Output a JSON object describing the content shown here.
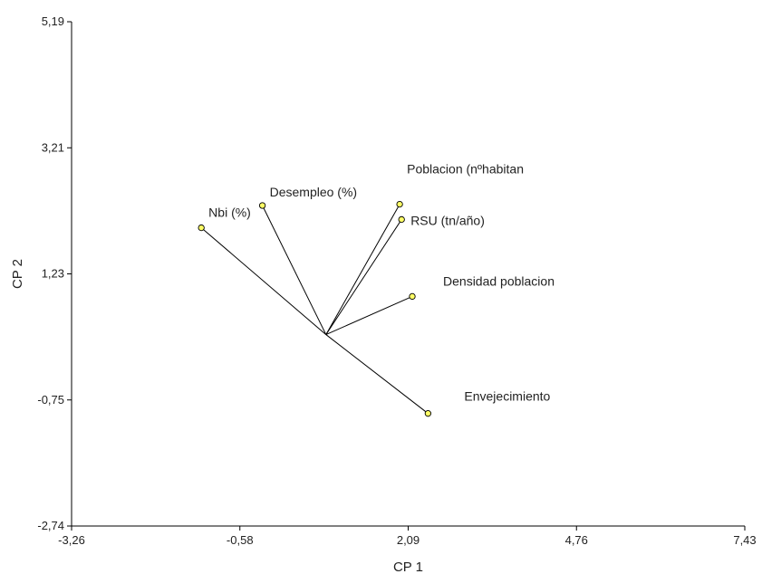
{
  "chart_data": {
    "type": "scatter",
    "subtype": "biplot",
    "title": "",
    "xlabel": "CP 1",
    "ylabel": "CP 2",
    "xlim": [
      -3.26,
      7.43
    ],
    "ylim": [
      -2.74,
      5.19
    ],
    "x_ticks": [
      "-3,26",
      "-0,58",
      "2,09",
      "4,76",
      "7,43"
    ],
    "y_ticks": [
      "-2,74",
      "-0,75",
      "1,23",
      "3,21",
      "5,19"
    ],
    "origin": [
      0.78,
      0.27
    ],
    "grid": false,
    "legend": "none",
    "marker_color": "#ffff66",
    "line_color": "#000000",
    "vectors": [
      {
        "name": "Poblacion (nºhabitan",
        "x": 1.95,
        "y": 2.32
      },
      {
        "name": "RSU (tn/año)",
        "x": 1.98,
        "y": 2.08
      },
      {
        "name": "Desempleo (%)",
        "x": -0.23,
        "y": 2.3
      },
      {
        "name": "Nbi (%)",
        "x": -1.2,
        "y": 1.95
      },
      {
        "name": "Densidad poblacion",
        "x": 2.15,
        "y": 0.87
      },
      {
        "name": "Envejecimiento",
        "x": 2.4,
        "y": -0.97
      }
    ]
  }
}
